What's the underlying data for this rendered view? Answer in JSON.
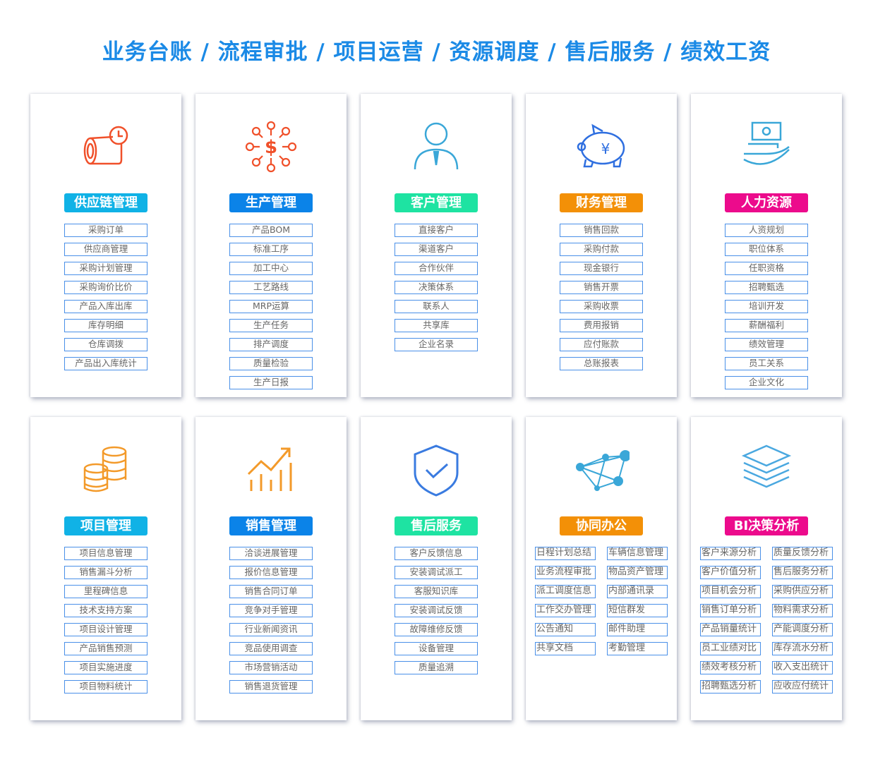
{
  "title": "业务台账 / 流程审批 / 项目运营 / 资源调度 / 售后服务 / 绩效工资",
  "modules": [
    {
      "name": "供应链管理",
      "color": "#10b2e6",
      "icon": "pipe-clock-icon",
      "items": [
        "采购订单",
        "供应商管理",
        "采购计划管理",
        "采购询价比价",
        "产品入库出库",
        "库存明细",
        "仓库调拨",
        "产品出入库统计"
      ]
    },
    {
      "name": "生产管理",
      "color": "#0b83e8",
      "icon": "dollar-network-icon",
      "items": [
        "产品BOM",
        "标准工序",
        "加工中心",
        "工艺路线",
        "MRP运算",
        "生产任务",
        "排产调度",
        "质量检验",
        "生产日报"
      ]
    },
    {
      "name": "客户管理",
      "color": "#1ee3a2",
      "icon": "person-icon",
      "items": [
        "直接客户",
        "渠道客户",
        "合作伙伴",
        "决策体系",
        "联系人",
        "共享库",
        "企业名录"
      ]
    },
    {
      "name": "财务管理",
      "color": "#f39007",
      "icon": "piggy-bank-icon",
      "items": [
        "销售回款",
        "采购付款",
        "现金银行",
        "销售开票",
        "采购收票",
        "费用报销",
        "应付账款",
        "总账报表"
      ]
    },
    {
      "name": "人力资源",
      "color": "#ec0b8c",
      "icon": "hand-money-icon",
      "items": [
        "人资规划",
        "职位体系",
        "任职资格",
        "招聘甄选",
        "培训开发",
        "薪酬福利",
        "绩效管理",
        "员工关系",
        "企业文化"
      ]
    },
    {
      "name": "项目管理",
      "color": "#10b2e6",
      "icon": "coins-stack-icon",
      "items": [
        "项目信息管理",
        "销售漏斗分析",
        "里程碑信息",
        "技术支持方案",
        "项目设计管理",
        "产品销售预测",
        "项目实施进度",
        "项目物料统计"
      ]
    },
    {
      "name": "销售管理",
      "color": "#0b83e8",
      "icon": "growth-chart-icon",
      "items": [
        "洽谈进展管理",
        "报价信息管理",
        "销售合同订单",
        "竞争对手管理",
        "行业新闻资讯",
        "竞品使用调查",
        "市场营销活动",
        "销售退货管理"
      ]
    },
    {
      "name": "售后服务",
      "color": "#1ee3a2",
      "icon": "shield-check-icon",
      "items": [
        "客户反馈信息",
        "安装调试派工",
        "客服知识库",
        "安装调试反馈",
        "故障维修反馈",
        "设备管理",
        "质量追溯"
      ]
    },
    {
      "name": "协同办公",
      "color": "#f39007",
      "icon": "network-nodes-icon",
      "items": [
        "日程计划总结",
        "车辆信息管理",
        "业务流程审批",
        "物品资产管理",
        "派工调度信息",
        "内部通讯录",
        "工作交办管理",
        "短信群发",
        "公告通知",
        "邮件助理",
        "共享文档",
        "考勤管理"
      ]
    },
    {
      "name": "BI决策分析",
      "color": "#ec0b8c",
      "icon": "layers-icon",
      "items": [
        "客户来源分析",
        "质量反馈分析",
        "客户价值分析",
        "售后服务分析",
        "项目机会分析",
        "采购供应分析",
        "销售订单分析",
        "物料需求分析",
        "产品销量统计",
        "产能调度分析",
        "员工业绩对比",
        "库存流水分析",
        "绩效考核分析",
        "收入支出统计",
        "招聘甄选分析",
        "应收应付统计"
      ]
    }
  ]
}
